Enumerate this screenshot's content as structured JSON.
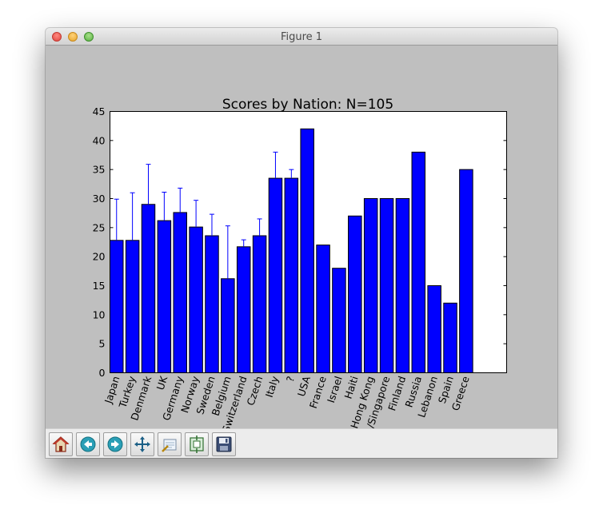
{
  "window": {
    "title": "Figure 1"
  },
  "toolbar": {
    "buttons": [
      {
        "name": "home-button",
        "icon": "home-icon"
      },
      {
        "name": "back-button",
        "icon": "back-arrow-icon"
      },
      {
        "name": "forward-button",
        "icon": "forward-arrow-icon"
      },
      {
        "name": "pan-button",
        "icon": "move-arrows-icon"
      },
      {
        "name": "zoom-button",
        "icon": "zoom-rectangle-icon"
      },
      {
        "name": "subplots-button",
        "icon": "subplots-config-icon"
      },
      {
        "name": "save-button",
        "icon": "save-floppy-icon"
      }
    ]
  },
  "chart_data": {
    "type": "bar",
    "title": "Scores by Nation: N=105",
    "xlabel": "",
    "ylabel": "",
    "ylim": [
      0,
      45
    ],
    "yticks": [
      0,
      5,
      10,
      15,
      20,
      25,
      30,
      35,
      40,
      45
    ],
    "categories": [
      "Japan",
      "Turkey",
      "Denmark",
      "UK",
      "Germany",
      "Norway",
      "Sweden",
      "Belgium",
      "Switzerland",
      "Czech",
      "Italy",
      "?",
      "USA",
      "France",
      "Israel",
      "Haiti",
      "Hong Kong",
      "USA/Singapore",
      "Finland",
      "Russia",
      "Lebanon",
      "Spain",
      "Greece"
    ],
    "values": [
      22.8,
      22.8,
      29.0,
      26.2,
      27.6,
      25.1,
      23.6,
      16.2,
      21.7,
      23.6,
      33.5,
      33.5,
      42.0,
      22.0,
      18.0,
      27.0,
      30.0,
      30.0,
      30.0,
      38.0,
      15.0,
      12.0,
      35.0
    ],
    "errors": [
      7.1,
      8.2,
      6.9,
      4.9,
      4.2,
      4.6,
      3.7,
      9.1,
      1.2,
      2.9,
      4.5,
      1.5,
      0,
      0,
      0,
      0,
      0,
      0,
      0,
      0,
      0,
      0,
      0
    ],
    "bar_color": "#0000ff",
    "error_color": "#0000ff",
    "grid": false
  }
}
